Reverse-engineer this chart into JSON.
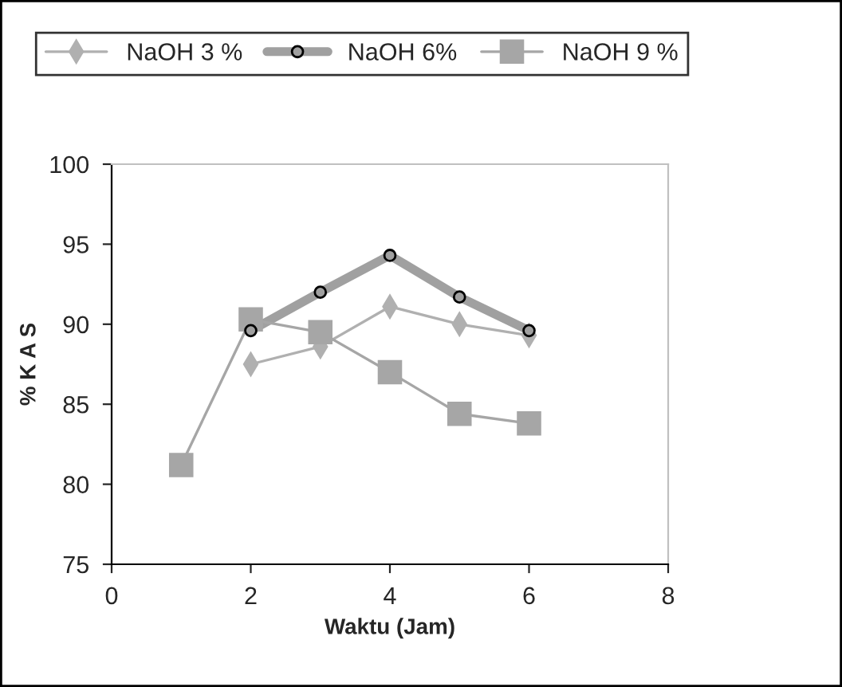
{
  "chart_data": {
    "type": "line",
    "xlabel": "Waktu (Jam)",
    "ylabel": "% K A S",
    "xlim": [
      0,
      8
    ],
    "xticks": [
      0,
      2,
      4,
      6,
      8
    ],
    "ylim": [
      75,
      100
    ],
    "yticks": [
      75,
      80,
      85,
      90,
      95,
      100
    ],
    "grid": false,
    "legend": "top",
    "series": [
      {
        "name": "NaOH 3 %",
        "color": "#b0b0b0",
        "marker": "diamond",
        "x": [
          2,
          3,
          4,
          5,
          6
        ],
        "values": [
          87.5,
          88.6,
          91.1,
          90.0,
          89.3
        ]
      },
      {
        "name": "NaOH 6%",
        "color": "#a0a0a0",
        "marker": "circle",
        "x": [
          2,
          3,
          4,
          5,
          6
        ],
        "values": [
          89.6,
          92.0,
          94.3,
          91.7,
          89.6
        ]
      },
      {
        "name": "NaOH 9 %",
        "color": "#a6a6a6",
        "marker": "square",
        "x": [
          1,
          2,
          3,
          4,
          5,
          6
        ],
        "values": [
          81.2,
          90.3,
          89.5,
          87.0,
          84.4,
          83.8
        ]
      }
    ]
  }
}
